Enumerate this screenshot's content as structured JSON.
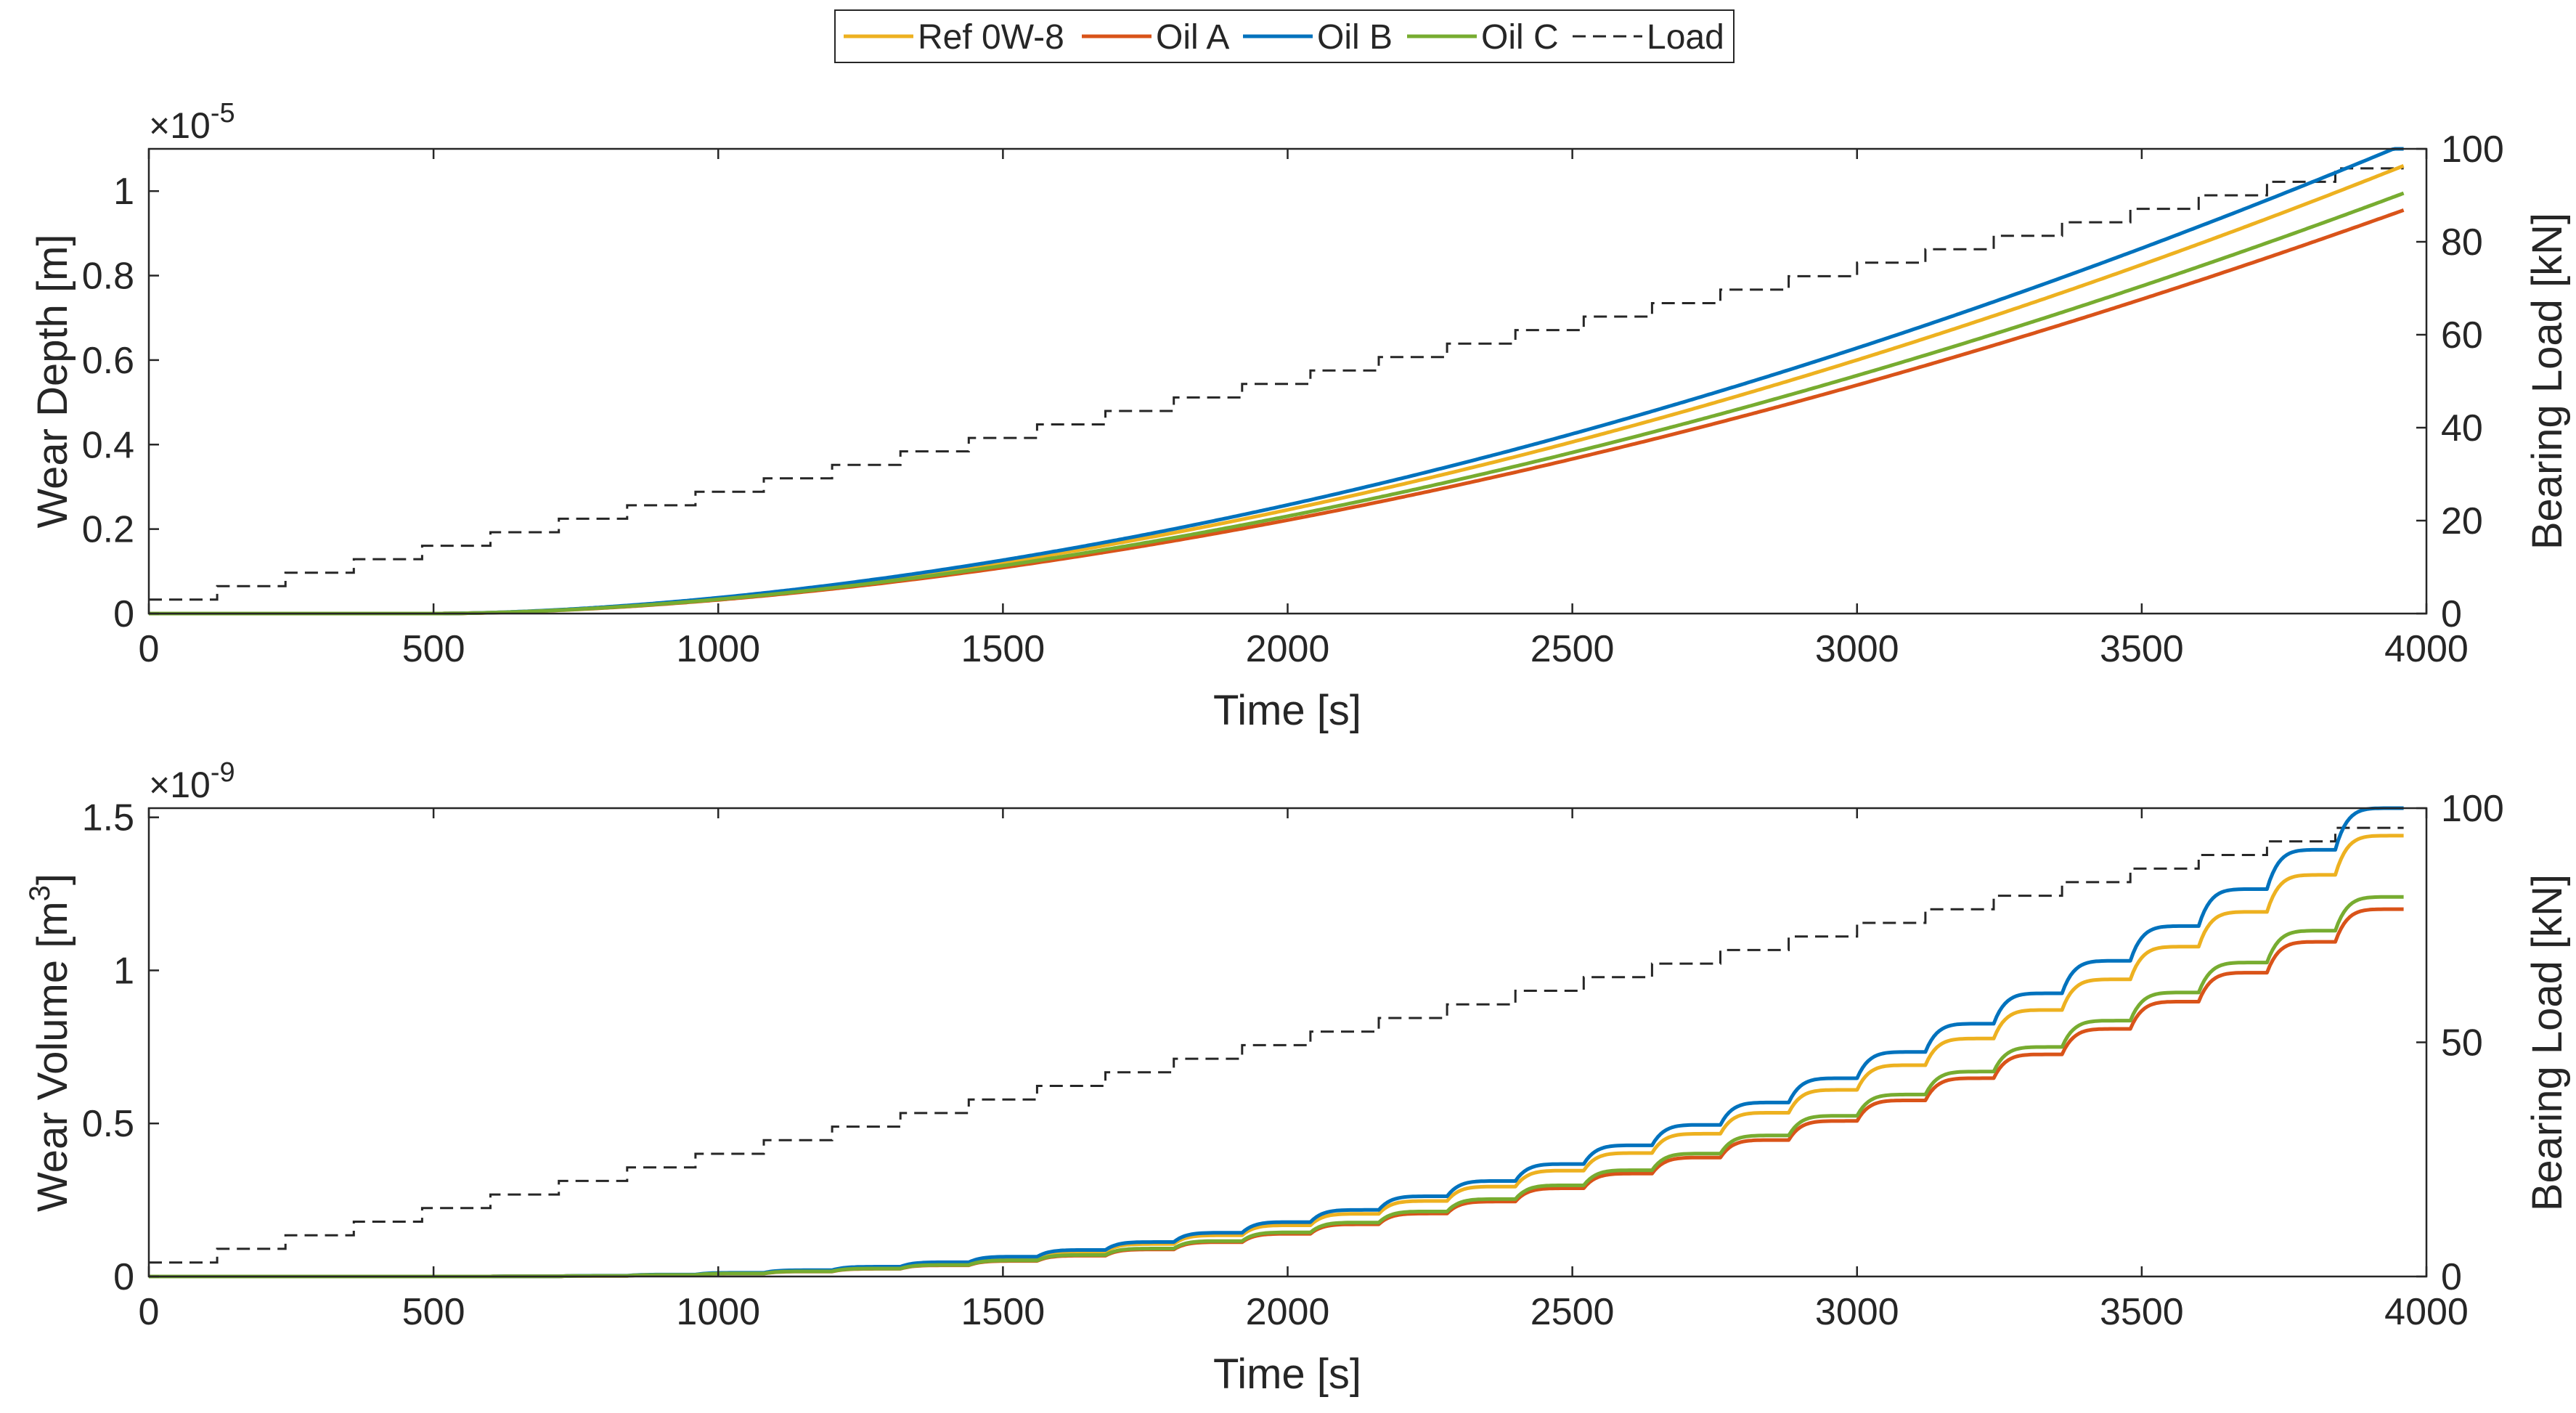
{
  "chart_data": [
    {
      "type": "line",
      "title": "",
      "xlabel": "Time [s]",
      "ylabel": "Wear Depth [m]",
      "y_exponent_label": "×10",
      "y_exponent_power": "-5",
      "y2label": "Bearing Load [kN]",
      "xlim": [
        0,
        4000
      ],
      "ylim": [
        0,
        1.1
      ],
      "y2lim": [
        0,
        100
      ],
      "xticks": [
        "0",
        "500",
        "1000",
        "1500",
        "2000",
        "2500",
        "3000",
        "3500",
        "4000"
      ],
      "yticks": [
        "0",
        "0.2",
        "0.4",
        "0.6",
        "0.8",
        "1"
      ],
      "y2ticks": [
        "0",
        "20",
        "40",
        "60",
        "80",
        "100"
      ],
      "model": "smooth",
      "onset": 500,
      "series": [
        {
          "name": "Ref 0W-8",
          "color": "#EDB120",
          "end": 1.06
        },
        {
          "name": "Oil A",
          "color": "#D95319",
          "end": 0.955
        },
        {
          "name": "Oil B",
          "color": "#0072BD",
          "end": 1.11
        },
        {
          "name": "Oil C",
          "color": "#77AC30",
          "end": 0.995
        }
      ]
    },
    {
      "type": "line",
      "title": "",
      "xlabel": "Time [s]",
      "ylabel": "Wear Volume [m",
      "ylabel_sup": "3",
      "ylabel_close": "]",
      "y_exponent_label": "×10",
      "y_exponent_power": "-9",
      "y2label": "Bearing Load [kN]",
      "xlim": [
        0,
        4000
      ],
      "ylim": [
        0,
        1.53
      ],
      "y2lim": [
        0,
        100
      ],
      "xticks": [
        "0",
        "500",
        "1000",
        "1500",
        "2000",
        "2500",
        "3000",
        "3500",
        "4000"
      ],
      "yticks": [
        "0",
        "0.5",
        "1",
        "1.5"
      ],
      "y2ticks": [
        "0",
        "50",
        "100"
      ],
      "model": "stepped",
      "onset": 550,
      "series": [
        {
          "name": "Ref 0W-8",
          "color": "#EDB120",
          "end": 1.44
        },
        {
          "name": "Oil A",
          "color": "#D95319",
          "end": 1.2
        },
        {
          "name": "Oil B",
          "color": "#0072BD",
          "end": 1.53
        },
        {
          "name": "Oil C",
          "color": "#77AC30",
          "end": 1.24
        }
      ]
    }
  ],
  "load_series": {
    "name": "Load",
    "color": "#262626",
    "step_duration_s": 120,
    "start_kN": 3,
    "step_kN": 2.9,
    "end_time_s": 3960
  },
  "legend": {
    "position": "top-center",
    "entries": [
      "Ref 0W-8",
      "Oil A",
      "Oil B",
      "Oil C",
      "Load"
    ]
  }
}
